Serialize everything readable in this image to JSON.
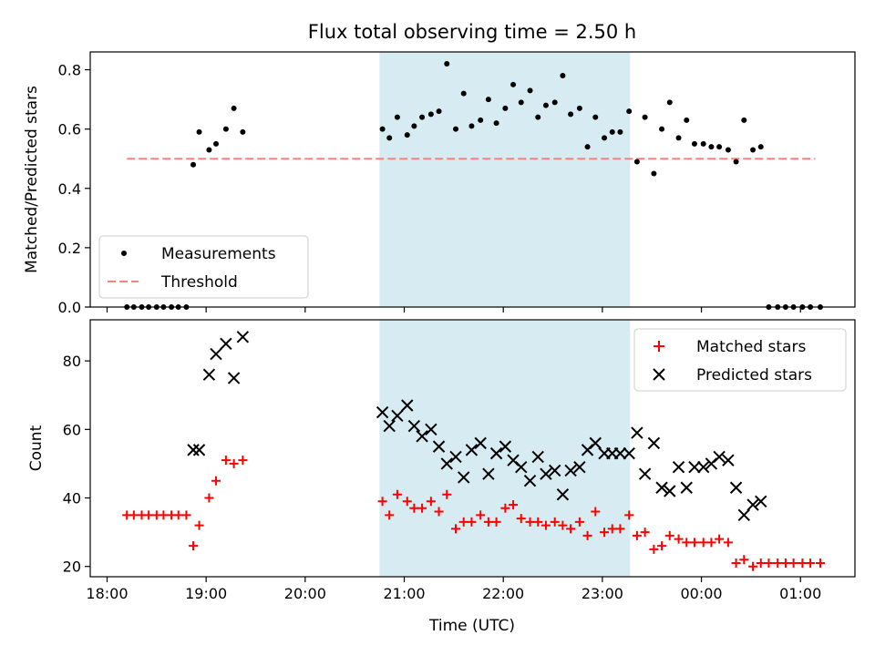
{
  "title": "Flux total observing time = 2.50 h",
  "xlabel": "Time (UTC)",
  "x_tick_labels": [
    "18:00",
    "19:00",
    "20:00",
    "21:00",
    "22:00",
    "23:00",
    "00:00",
    "01:00"
  ],
  "colors": {
    "shade": "#add8e6",
    "threshold": "#ff8080",
    "matched": "#ff0000",
    "predicted": "#000000",
    "measurement": "#000000"
  },
  "chart_data": [
    {
      "type": "scatter",
      "ylabel": "Matched/Predicted stars",
      "ylim": [
        0,
        0.86
      ],
      "y_tick_labels": [
        "0.0",
        "0.2",
        "0.4",
        "0.6",
        "0.8"
      ],
      "y_ticks": [
        0,
        0.2,
        0.4,
        0.6,
        0.8
      ],
      "x_ticks_hours": [
        18,
        19,
        20,
        21,
        22,
        23,
        24,
        25
      ],
      "xlim_hours": [
        17.83,
        25.55
      ],
      "shaded_span_hours": [
        20.75,
        23.28
      ],
      "legend": {
        "placement": "lower-left",
        "entries": [
          "Measurements",
          "Threshold"
        ]
      },
      "threshold": {
        "name": "Threshold",
        "value": 0.5,
        "x_range_hours": [
          18.2,
          25.15
        ]
      },
      "series": [
        {
          "name": "Measurements",
          "x": [
            18.2,
            18.27,
            18.35,
            18.42,
            18.5,
            18.57,
            18.65,
            18.72,
            18.8,
            18.87,
            18.93,
            19.03,
            19.1,
            19.2,
            19.28,
            19.37,
            20.78,
            20.85,
            20.93,
            21.03,
            21.1,
            21.18,
            21.27,
            21.35,
            21.43,
            21.52,
            21.6,
            21.68,
            21.77,
            21.85,
            21.93,
            22.02,
            22.1,
            22.18,
            22.27,
            22.35,
            22.43,
            22.52,
            22.6,
            22.68,
            22.77,
            22.85,
            22.93,
            23.02,
            23.1,
            23.18,
            23.27,
            23.35,
            23.43,
            23.52,
            23.6,
            23.68,
            23.77,
            23.85,
            23.93,
            24.02,
            24.1,
            24.18,
            24.27,
            24.35,
            24.43,
            24.52,
            24.6,
            24.68,
            24.77,
            24.85,
            24.93,
            25.02,
            25.1,
            25.2
          ],
          "values": [
            0,
            0,
            0,
            0,
            0,
            0,
            0,
            0,
            0,
            0.48,
            0.59,
            0.53,
            0.55,
            0.6,
            0.67,
            0.59,
            0.6,
            0.57,
            0.64,
            0.58,
            0.61,
            0.64,
            0.65,
            0.66,
            0.82,
            0.6,
            0.72,
            0.61,
            0.63,
            0.7,
            0.62,
            0.67,
            0.75,
            0.69,
            0.73,
            0.64,
            0.68,
            0.69,
            0.78,
            0.65,
            0.67,
            0.54,
            0.64,
            0.57,
            0.59,
            0.59,
            0.66,
            0.49,
            0.64,
            0.45,
            0.6,
            0.69,
            0.57,
            0.63,
            0.55,
            0.55,
            0.54,
            0.54,
            0.53,
            0.49,
            0.63,
            0.53,
            0.54,
            0,
            0,
            0,
            0,
            0,
            0,
            0
          ]
        }
      ]
    },
    {
      "type": "scatter",
      "ylabel": "Count",
      "ylim": [
        17,
        92
      ],
      "y_tick_labels": [
        "20",
        "40",
        "60",
        "80"
      ],
      "y_ticks": [
        20,
        40,
        60,
        80
      ],
      "x_ticks_hours": [
        18,
        19,
        20,
        21,
        22,
        23,
        24,
        25
      ],
      "xlim_hours": [
        17.83,
        25.55
      ],
      "shaded_span_hours": [
        20.75,
        23.28
      ],
      "legend": {
        "placement": "top-right",
        "entries": [
          "Matched stars",
          "Predicted stars"
        ]
      },
      "series": [
        {
          "name": "Matched stars",
          "marker": "plus",
          "x": [
            18.2,
            18.27,
            18.35,
            18.42,
            18.5,
            18.57,
            18.65,
            18.72,
            18.8,
            18.87,
            18.93,
            19.03,
            19.1,
            19.2,
            19.28,
            19.37,
            20.78,
            20.85,
            20.93,
            21.03,
            21.1,
            21.18,
            21.27,
            21.35,
            21.43,
            21.52,
            21.6,
            21.68,
            21.77,
            21.85,
            21.93,
            22.02,
            22.1,
            22.18,
            22.27,
            22.35,
            22.43,
            22.52,
            22.6,
            22.68,
            22.77,
            22.85,
            22.93,
            23.02,
            23.1,
            23.18,
            23.27,
            23.35,
            23.43,
            23.52,
            23.6,
            23.68,
            23.77,
            23.85,
            23.93,
            24.02,
            24.1,
            24.18,
            24.27,
            24.35,
            24.43,
            24.52,
            24.6,
            24.68,
            24.77,
            24.85,
            24.93,
            25.02,
            25.1,
            25.2
          ],
          "values": [
            35,
            35,
            35,
            35,
            35,
            35,
            35,
            35,
            35,
            26,
            32,
            40,
            45,
            51,
            50,
            51,
            39,
            35,
            41,
            39,
            37,
            37,
            39,
            36,
            41,
            31,
            33,
            33,
            35,
            33,
            33,
            37,
            38,
            34,
            33,
            33,
            32,
            33,
            32,
            31,
            33,
            29,
            36,
            30,
            31,
            31,
            35,
            29,
            30,
            25,
            26,
            29,
            28,
            27,
            27,
            27,
            27,
            28,
            27,
            21,
            22,
            20,
            21,
            21,
            21,
            21,
            21,
            21,
            21,
            21
          ]
        },
        {
          "name": "Predicted stars",
          "marker": "x",
          "x": [
            18.87,
            18.93,
            19.03,
            19.1,
            19.2,
            19.28,
            19.37,
            20.78,
            20.85,
            20.93,
            21.03,
            21.1,
            21.18,
            21.27,
            21.35,
            21.43,
            21.52,
            21.6,
            21.68,
            21.77,
            21.85,
            21.93,
            22.02,
            22.1,
            22.18,
            22.27,
            22.35,
            22.43,
            22.52,
            22.6,
            22.68,
            22.77,
            22.85,
            22.93,
            23.02,
            23.1,
            23.18,
            23.27,
            23.35,
            23.43,
            23.52,
            23.6,
            23.68,
            23.77,
            23.85,
            23.93,
            24.02,
            24.1,
            24.18,
            24.27,
            24.35,
            24.43,
            24.52,
            24.6
          ],
          "values": [
            54,
            54,
            76,
            82,
            85,
            75,
            87,
            65,
            61,
            64,
            67,
            61,
            58,
            60,
            55,
            50,
            52,
            46,
            54,
            56,
            47,
            53,
            55,
            51,
            49,
            45,
            52,
            47,
            48,
            41,
            48,
            49,
            54,
            56,
            53,
            53,
            53,
            53,
            59,
            47,
            56,
            43,
            42,
            49,
            43,
            49,
            49,
            50,
            52,
            51,
            43,
            35,
            38,
            39
          ]
        }
      ]
    }
  ]
}
